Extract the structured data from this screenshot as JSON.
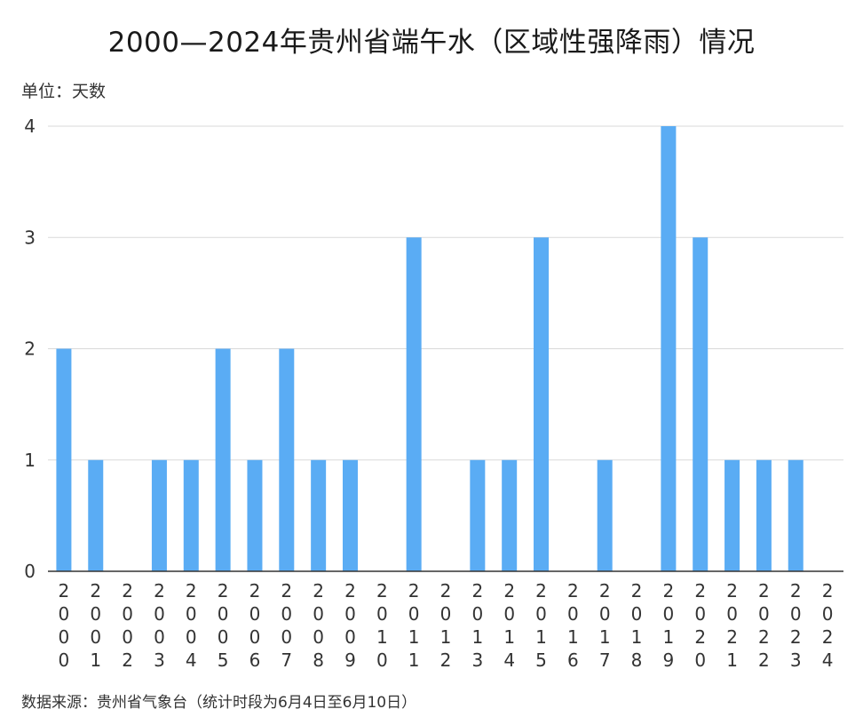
{
  "title": "2000—2024年贵州省端午水（区域性强降雨）情况",
  "unit_label": "单位：天数",
  "source_note": "数据来源：贵州省气象台（统计时段为6月4日至6月10日）",
  "colors": {
    "bar": "#5aacf4",
    "grid": "#d9d9d9",
    "axis": "#333333"
  },
  "chart_data": {
    "type": "bar",
    "categories": [
      "2000",
      "2001",
      "2002",
      "2003",
      "2004",
      "2005",
      "2006",
      "2007",
      "2008",
      "2009",
      "2010",
      "2011",
      "2012",
      "2013",
      "2014",
      "2015",
      "2016",
      "2017",
      "2018",
      "2019",
      "2020",
      "2021",
      "2022",
      "2023",
      "2024"
    ],
    "values": [
      2,
      1,
      0,
      1,
      1,
      2,
      1,
      2,
      1,
      1,
      0,
      3,
      0,
      1,
      1,
      3,
      0,
      1,
      0,
      4,
      3,
      1,
      1,
      1,
      0
    ],
    "ylim": [
      0,
      4
    ],
    "yticks": [
      0,
      1,
      2,
      3,
      4
    ],
    "grid": true
  }
}
